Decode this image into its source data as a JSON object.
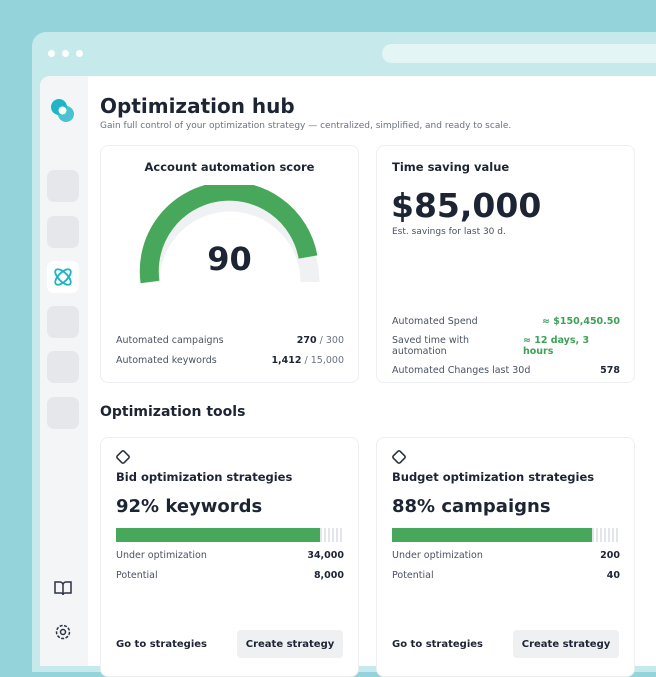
{
  "app": {
    "title": "Optimization hub",
    "subtitle": "Gain full control of your optimization strategy — centralized, simplified, and ready to scale."
  },
  "score_card": {
    "title": "Account automation score",
    "score": 90,
    "rows": [
      {
        "label": "Automated campaigns",
        "value": "270",
        "total": "/ 300"
      },
      {
        "label": "Automated keywords",
        "value": "1,412",
        "total": "/ 15,000"
      }
    ]
  },
  "value_card": {
    "title": "Time saving value",
    "amount": "$85,000",
    "caption": "Est. savings for last 30 d.",
    "rows": [
      {
        "label": "Automated Spend",
        "value": "≈ $150,450.50"
      },
      {
        "label": "Saved time with automation",
        "value": "≈ 12 days, 3 hours"
      },
      {
        "label": "Automated Changes last 30d",
        "value": "578"
      }
    ]
  },
  "tools": {
    "heading": "Optimization tools",
    "cards": [
      {
        "title": "Bid optimization strategies",
        "headline": "92% keywords",
        "rows": [
          {
            "label": "Under optimization",
            "value": "34,000"
          },
          {
            "label": "Potential",
            "value": "8,000"
          }
        ],
        "link": "Go to strategies",
        "button": "Create strategy"
      },
      {
        "title": "Budget optimization strategies",
        "headline": "88% campaigns",
        "rows": [
          {
            "label": "Under optimization",
            "value": "200"
          },
          {
            "label": "Potential",
            "value": "40"
          }
        ],
        "link": "Go to strategies",
        "button": "Create strategy"
      }
    ]
  }
}
